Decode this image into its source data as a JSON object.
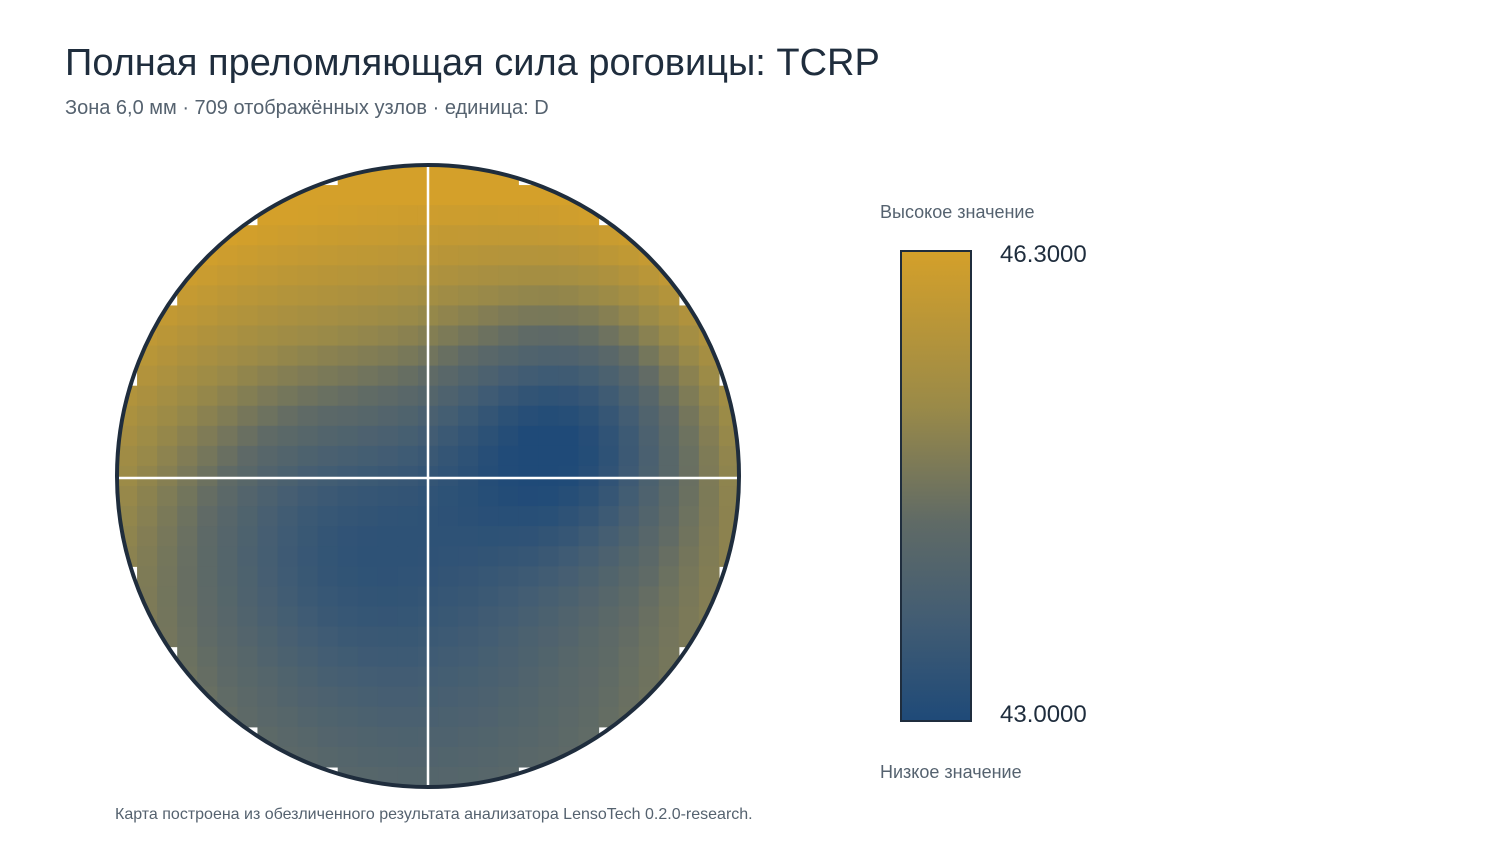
{
  "header": {
    "title": "Полная преломляющая сила роговицы: TCRP",
    "subtitle": "Зона 6,0 мм · 709 отображённых узлов · единица: D"
  },
  "legend": {
    "high_label": "Высокое значение",
    "low_label": "Низкое значение",
    "max_label": "46.3000",
    "min_label": "43.0000"
  },
  "footnote": "Карта построена из обезличенного результата анализатора LensoTech 0.2.0-research.",
  "colors": {
    "high": "#d4a02a",
    "mid": "#5f6a66",
    "low": "#1f4a78",
    "outline": "#1f2d3d",
    "crosshair": "#ffffff"
  },
  "chart_data": {
    "type": "heatmap",
    "zone_diameter_mm": 6.0,
    "displayed_nodes": 709,
    "unit": "D",
    "value_range": [
      43.0,
      46.3
    ],
    "grid_size": 31,
    "value_model": {
      "description_of_surface": "top ~46.0 D, central-right minimum ~43.1 D, central-left/lower ~44.0 D, rim ~45.0 D",
      "base": 44.9,
      "vertical_gradient": 1.2,
      "rim_rise": 0.6,
      "minima": [
        {
          "cx": 0.45,
          "cy": 0.15,
          "depth": 2.0,
          "sigma": 0.3
        },
        {
          "cx": -0.35,
          "cy": -0.1,
          "depth": 1.0,
          "sigma": 0.35
        },
        {
          "cx": 0.0,
          "cy": -0.45,
          "depth": 0.6,
          "sigma": 0.4
        }
      ]
    }
  }
}
